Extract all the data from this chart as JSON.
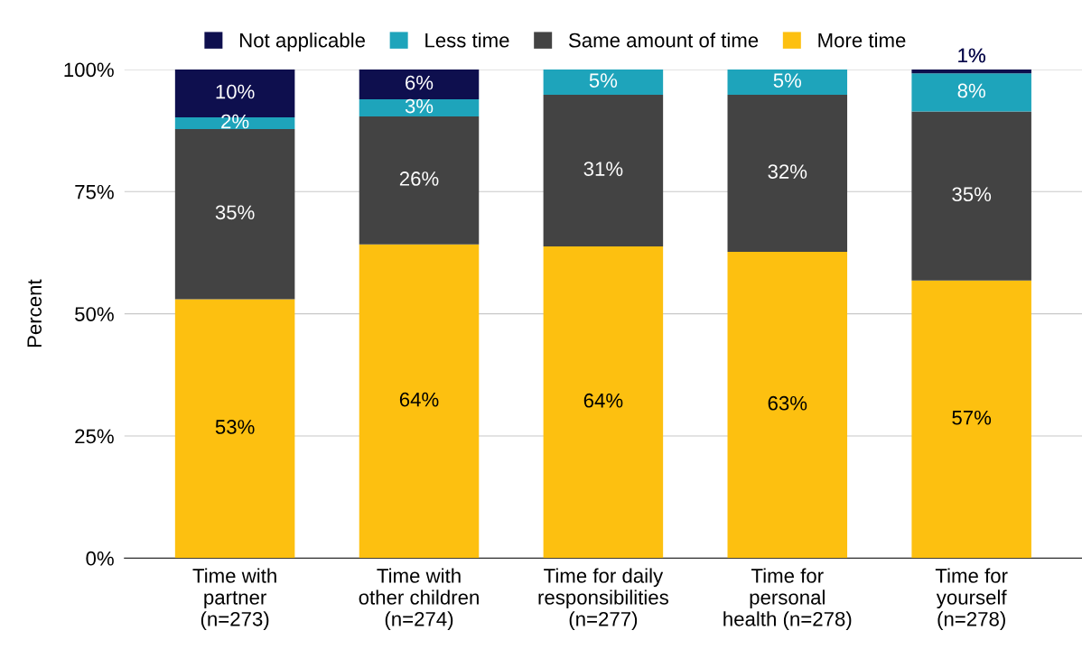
{
  "chart_data": {
    "type": "bar",
    "stacked": true,
    "ylabel": "Percent",
    "categories": [
      "Time with\npartner\n(n=273)",
      "Time with\nother children\n(n=274)",
      "Time for daily\nresponsibilities\n(n=277)",
      "Time for\npersonal\nhealth (n=278)",
      "Time for\nyourself\n(n=278)"
    ],
    "series": [
      {
        "name": "More time",
        "color": "#fdc010",
        "values": [
          53.0,
          64.2,
          63.8,
          62.7,
          56.8
        ],
        "value_labels": [
          "53%",
          "64%",
          "64%",
          "63%",
          "57%"
        ]
      },
      {
        "name": "Same amount of time",
        "color": "#434343",
        "values": [
          34.8,
          26.2,
          31.0,
          32.1,
          34.6
        ],
        "value_labels": [
          "35%",
          "26%",
          "31%",
          "32%",
          "35%"
        ]
      },
      {
        "name": "Less time",
        "color": "#1ea4bb",
        "values": [
          2.4,
          3.5,
          5.2,
          5.2,
          7.8
        ],
        "value_labels": [
          "2%",
          "3%",
          "5%",
          "5%",
          "8%"
        ]
      },
      {
        "name": "Not applicable",
        "color": "#0e0f4e",
        "values": [
          9.8,
          6.1,
          0,
          0,
          0.8
        ],
        "value_labels": [
          "10%",
          "6%",
          null,
          null,
          "1%"
        ]
      }
    ],
    "ylim": [
      0,
      100
    ],
    "yticks": [
      {
        "value": 0,
        "label": "0%"
      },
      {
        "value": 25,
        "label": "25%"
      },
      {
        "value": 50,
        "label": "50%"
      },
      {
        "value": 75,
        "label": "75%"
      },
      {
        "value": 100,
        "label": "100%"
      }
    ],
    "grid": "y",
    "legend": "top"
  }
}
